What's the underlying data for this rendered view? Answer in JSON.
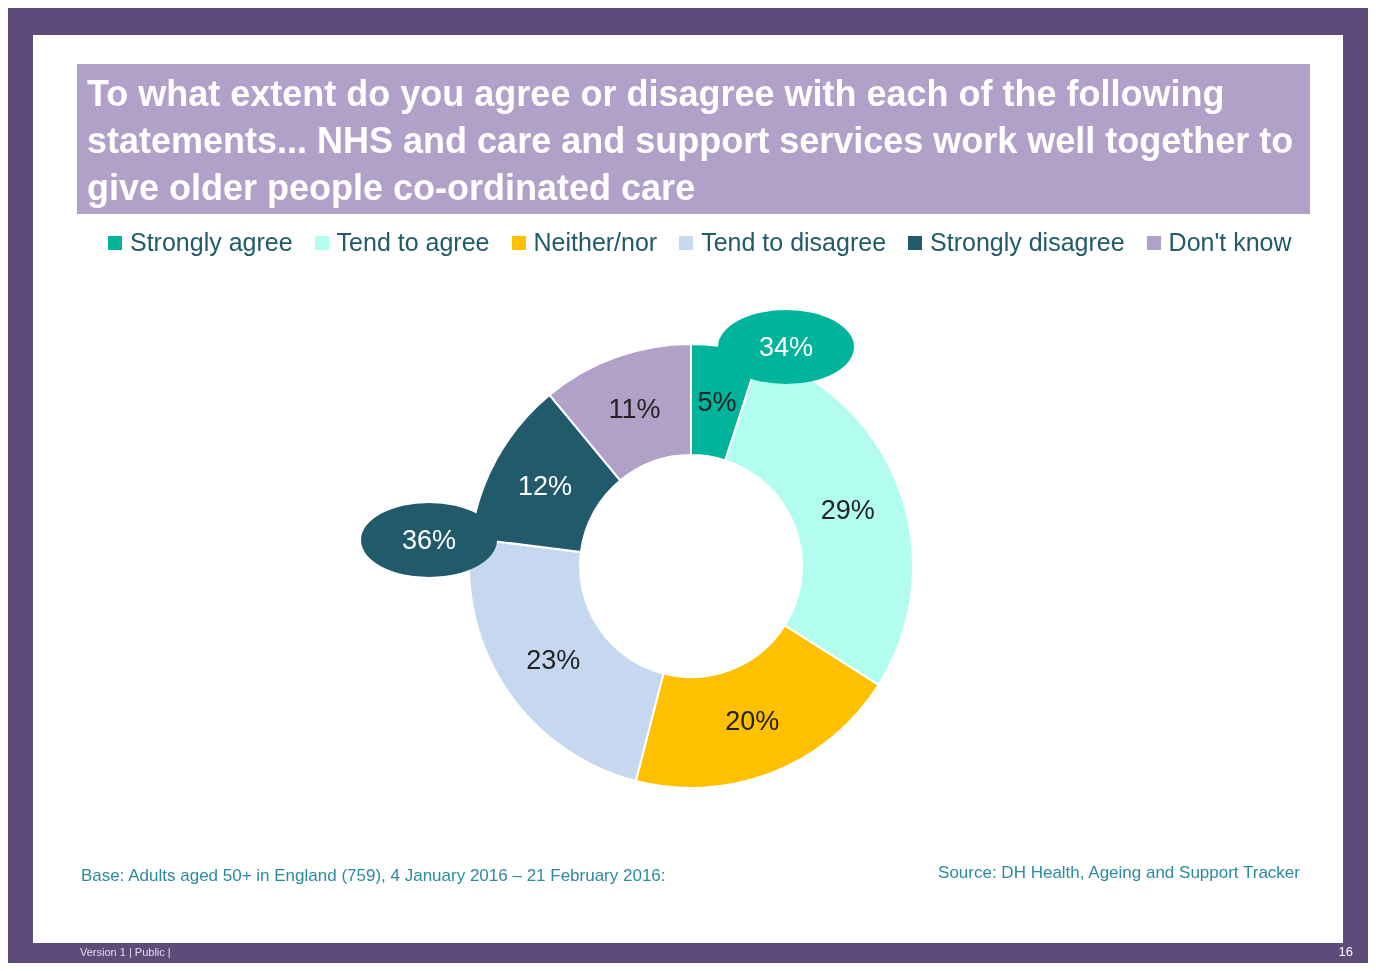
{
  "chart_data": {
    "type": "donut",
    "title": "To what extent do you agree or disagree with each of the following statements... NHS and care and support services work well together to give older people co-ordinated care",
    "categories": [
      "Strongly agree",
      "Tend to agree",
      "Neither/nor",
      "Tend to disagree",
      "Strongly disagree",
      "Don't know"
    ],
    "values": [
      5,
      29,
      20,
      23,
      12,
      11
    ],
    "colors": [
      "#00b49b",
      "#b3fdf0",
      "#ffc000",
      "#c5d8f0",
      "#215a6a",
      "#b1a0c7"
    ],
    "value_labels": [
      "5%",
      "29%",
      "20%",
      "23%",
      "12%",
      "11%"
    ],
    "legend": "top",
    "annotations": [
      "34%",
      "36%",
      "Base: Adults aged 50+ in England (759), 4 January 2016 – 21 February 2016:",
      "Source: DH Health, Ageing and Support Tracker",
      "Version 1  |  Public |",
      "16"
    ]
  }
}
